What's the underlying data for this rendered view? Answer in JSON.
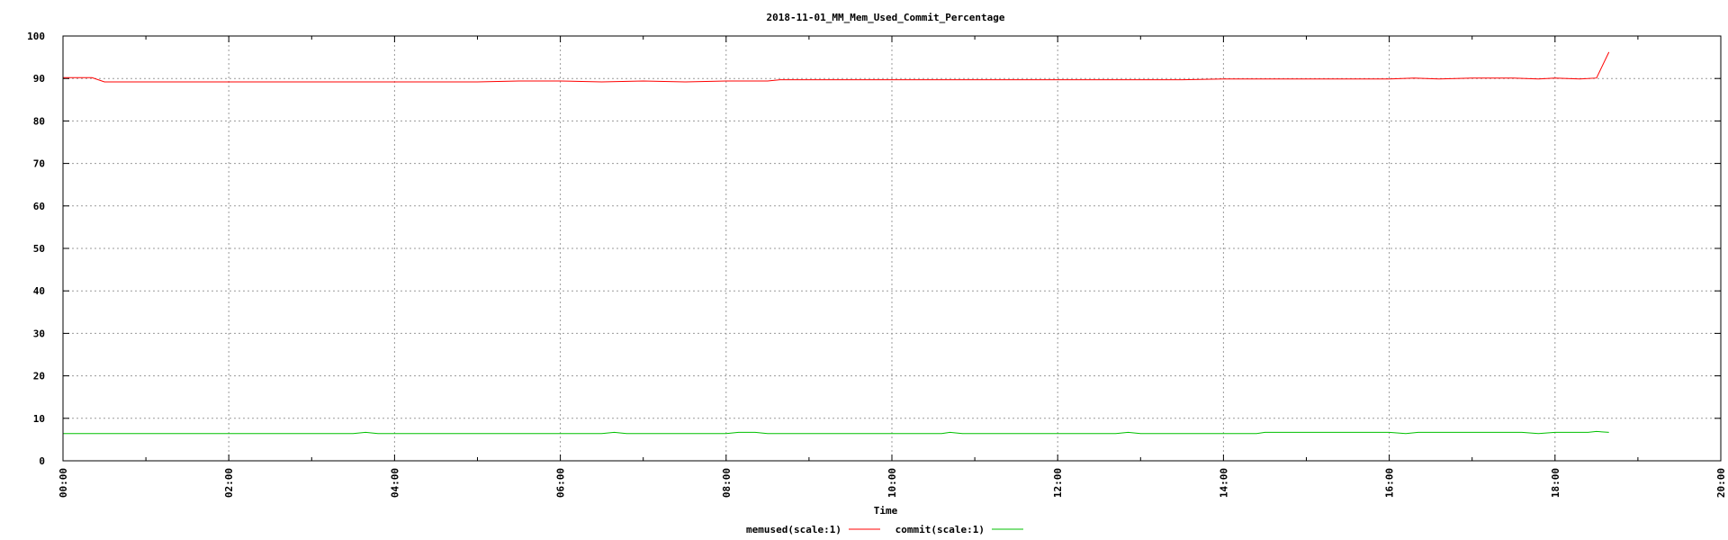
{
  "chart_data": {
    "type": "line",
    "title": "2018-11-01_MM_Mem_Used_Commit_Percentage",
    "xlabel": "Time",
    "ylabel": "",
    "xlim": [
      0,
      20
    ],
    "ylim": [
      0,
      100
    ],
    "x_unit": "hours",
    "x_ticks": [
      "00:00",
      "02:00",
      "04:00",
      "06:00",
      "08:00",
      "10:00",
      "12:00",
      "14:00",
      "16:00",
      "18:00",
      "20:00"
    ],
    "y_ticks": [
      "0",
      "10",
      "20",
      "30",
      "40",
      "50",
      "60",
      "70",
      "80",
      "90",
      "100"
    ],
    "grid": true,
    "legend_position": "bottom-center",
    "series": [
      {
        "name": "memused(scale:1)",
        "color": "#ff0000",
        "x": [
          0.0,
          0.25,
          0.35,
          0.5,
          1.0,
          2.0,
          3.0,
          4.0,
          5.0,
          5.5,
          6.0,
          6.5,
          7.0,
          7.5,
          8.0,
          8.5,
          8.65,
          9.0,
          10.0,
          11.0,
          12.0,
          13.0,
          13.5,
          14.0,
          15.0,
          16.0,
          16.3,
          16.6,
          17.0,
          17.5,
          17.8,
          18.0,
          18.3,
          18.5,
          18.65
        ],
        "y": [
          90.2,
          90.2,
          90.2,
          89.2,
          89.2,
          89.2,
          89.2,
          89.2,
          89.2,
          89.4,
          89.4,
          89.2,
          89.4,
          89.2,
          89.4,
          89.4,
          89.7,
          89.7,
          89.7,
          89.7,
          89.7,
          89.7,
          89.7,
          89.9,
          89.9,
          89.9,
          90.1,
          89.9,
          90.1,
          90.1,
          89.9,
          90.1,
          89.9,
          90.1,
          96.2
        ]
      },
      {
        "name": "commit(scale:1)",
        "color": "#00c000",
        "x": [
          0.0,
          1.0,
          2.0,
          3.0,
          3.5,
          3.65,
          3.8,
          4.0,
          5.0,
          6.0,
          6.5,
          6.65,
          6.8,
          7.0,
          8.0,
          8.15,
          8.35,
          8.5,
          9.0,
          10.0,
          10.6,
          10.7,
          10.85,
          11.0,
          12.0,
          12.7,
          12.85,
          13.0,
          14.0,
          14.4,
          14.5,
          15.0,
          16.0,
          16.2,
          16.35,
          17.0,
          17.6,
          17.8,
          18.0,
          18.4,
          18.5,
          18.65
        ],
        "y": [
          6.4,
          6.4,
          6.4,
          6.4,
          6.4,
          6.7,
          6.4,
          6.4,
          6.4,
          6.4,
          6.4,
          6.7,
          6.4,
          6.4,
          6.4,
          6.7,
          6.7,
          6.4,
          6.4,
          6.4,
          6.4,
          6.7,
          6.4,
          6.4,
          6.4,
          6.4,
          6.7,
          6.4,
          6.4,
          6.4,
          6.7,
          6.7,
          6.7,
          6.4,
          6.7,
          6.7,
          6.7,
          6.4,
          6.7,
          6.7,
          6.9,
          6.7
        ]
      }
    ]
  }
}
